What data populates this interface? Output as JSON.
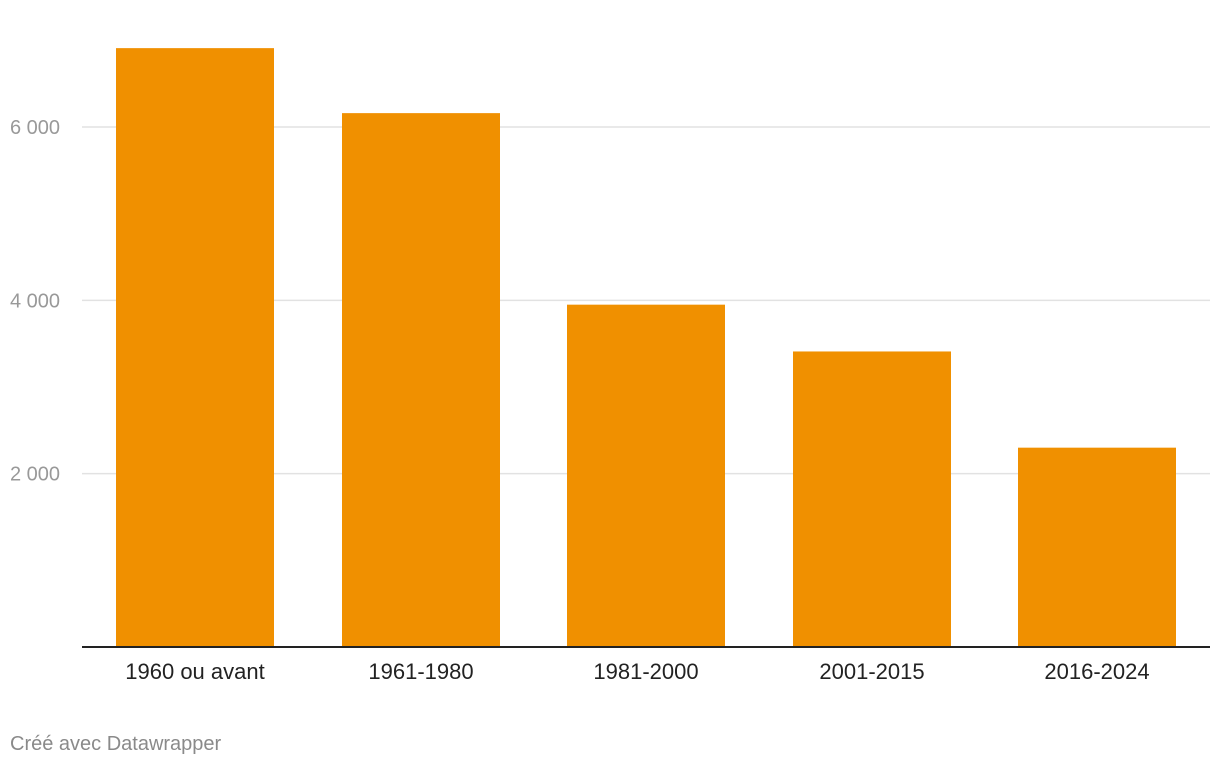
{
  "chart_data": {
    "type": "bar",
    "categories": [
      "1960 ou avant",
      "1961-1980",
      "1981-2000",
      "2001-2015",
      "2016-2024"
    ],
    "values": [
      6910,
      6160,
      3950,
      3410,
      2300
    ],
    "ylim": [
      0,
      7500
    ],
    "yticks": [
      2000,
      4000,
      6000
    ],
    "ytick_labels": [
      "2 000",
      "4 000",
      "6 000"
    ],
    "grid": true,
    "bar_color": "#f09000",
    "grid_color": "#e2e2e2",
    "axis_color": "#222222",
    "tick_label_color": "#999999",
    "category_label_color": "#222222"
  },
  "footer": {
    "credit": "Créé avec Datawrapper"
  }
}
